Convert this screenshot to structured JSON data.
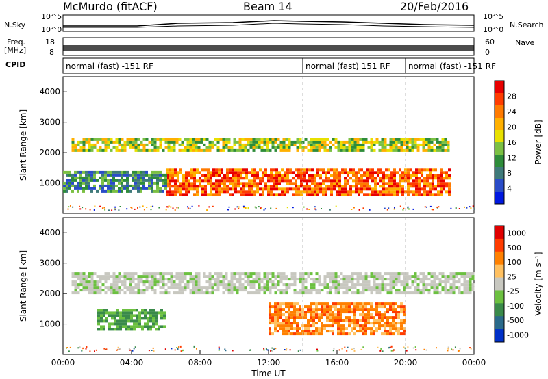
{
  "header": {
    "station": "McMurdo (fitACF)",
    "beam": "Beam 14",
    "date": "20/Feb/2016"
  },
  "panels": {
    "nsky": {
      "label": "N.Sky",
      "ticks": [
        "10^5",
        "10^0"
      ]
    },
    "nsearch": {
      "label": "N.Search",
      "ticks": [
        "10^5",
        "10^0"
      ]
    },
    "freq": {
      "label": "Freq.",
      "unit": "[MHz]",
      "ticks": [
        "18",
        "8"
      ]
    },
    "nave": {
      "label": "Nave",
      "ticks": [
        "60",
        "0"
      ]
    },
    "cpid": {
      "label": "CPID",
      "segments": [
        {
          "text": "normal (fast) -151 RF",
          "start_hour": 0,
          "end_hour": 14
        },
        {
          "text": "normal (fast) 151 RF",
          "start_hour": 14,
          "end_hour": 20
        },
        {
          "text": "normal (fast) -151 RF",
          "start_hour": 20,
          "end_hour": 24
        }
      ]
    }
  },
  "chart_data": [
    {
      "type": "heatmap",
      "name": "power",
      "ylabel": "Slant Range [km]",
      "ylim": [
        0,
        4500
      ],
      "yticks": [
        "1000",
        "2000",
        "3000",
        "4000"
      ],
      "xlim_hours": [
        0,
        24
      ],
      "colorbar": {
        "label": "Power [dB]",
        "ticks": [
          "4",
          "8",
          "12",
          "16",
          "20",
          "24",
          "28"
        ],
        "colors": [
          "#0018e0",
          "#2a4cc8",
          "#3f7a7a",
          "#2e8c3a",
          "#7bc043",
          "#e8e000",
          "#ffb000",
          "#ff7a00",
          "#ff3c00",
          "#e80000"
        ]
      },
      "bands": [
        {
          "start": 0.5,
          "end": 22.5,
          "low_km": 2050,
          "high_km": 2500,
          "level": "medium"
        },
        {
          "start": 6.0,
          "end": 22.5,
          "low_km": 600,
          "high_km": 1500,
          "level": "high"
        },
        {
          "start": 0.0,
          "end": 6.0,
          "low_km": 700,
          "high_km": 1400,
          "level": "low"
        }
      ]
    },
    {
      "type": "heatmap",
      "name": "velocity",
      "ylabel": "Slant Range [km]",
      "ylim": [
        0,
        4500
      ],
      "yticks": [
        "1000",
        "2000",
        "3000",
        "4000"
      ],
      "xlim_hours": [
        0,
        24
      ],
      "xticks": [
        "00:00",
        "04:00",
        "08:00",
        "12:00",
        "16:00",
        "20:00",
        "00:00"
      ],
      "xlabel": "Time UT",
      "colorbar": {
        "label": "Velocity [m s⁻¹]",
        "ticks": [
          "1000",
          "500",
          "100",
          "25",
          "-25",
          "-100",
          "-500",
          "-1000"
        ],
        "colors": [
          "#0030c8",
          "#2a6a8a",
          "#3a8a4a",
          "#6cc040",
          "#c8c8c0",
          "#ffc060",
          "#ff8000",
          "#ff3c00",
          "#e00000"
        ]
      },
      "bands": [
        {
          "start": 0.5,
          "end": 24.0,
          "low_km": 2000,
          "high_km": 2700,
          "level": "grey"
        },
        {
          "start": 12.0,
          "end": 20.0,
          "low_km": 650,
          "high_km": 1700,
          "level": "orange"
        },
        {
          "start": 2.0,
          "end": 6.0,
          "low_km": 800,
          "high_km": 1500,
          "level": "green"
        }
      ]
    }
  ]
}
